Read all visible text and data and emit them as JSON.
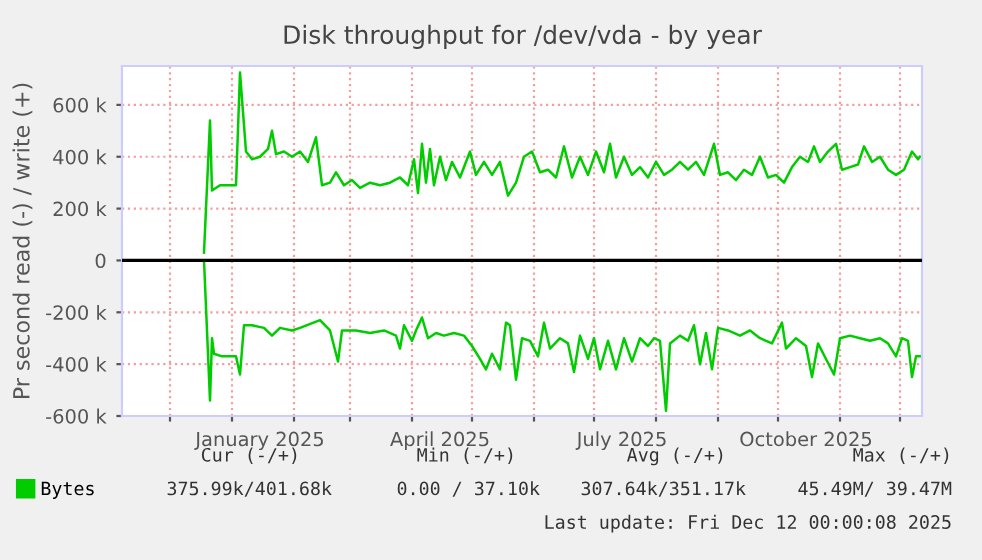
{
  "chart_data": {
    "type": "line",
    "title": "Disk throughput for /dev/vda - by year",
    "ylabel": "Pr second read (-) / write (+)",
    "xlim": [
      "2024-11-07",
      "2025-12-12"
    ],
    "xticks": [
      {
        "value": "2024-12-01",
        "label": null
      },
      {
        "value": "2025-01-01",
        "label": null
      },
      {
        "value": "2025-02-01",
        "label": null
      },
      {
        "value": "2025-03-01",
        "label": null
      },
      {
        "value": "2025-04-01",
        "label": null
      },
      {
        "value": "2025-05-01",
        "label": null
      },
      {
        "value": "2025-06-01",
        "label": null
      },
      {
        "value": "2025-07-01",
        "label": null
      },
      {
        "value": "2025-08-01",
        "label": null
      },
      {
        "value": "2025-09-01",
        "label": null
      },
      {
        "value": "2025-10-01",
        "label": null
      },
      {
        "value": "2025-11-01",
        "label": null
      },
      {
        "value": "2025-12-01",
        "label": null
      },
      {
        "value": "2025-01-15",
        "label": "January 2025"
      },
      {
        "value": "2025-04-15",
        "label": "April 2025"
      },
      {
        "value": "2025-07-15",
        "label": "July 2025"
      },
      {
        "value": "2025-10-15",
        "label": "October 2025"
      }
    ],
    "ylim": [
      -600000,
      750000
    ],
    "yticks": [
      {
        "value": -600000,
        "label": "-600 k"
      },
      {
        "value": -400000,
        "label": "-400 k"
      },
      {
        "value": -200000,
        "label": "-200 k"
      },
      0,
      {
        "value": 200000,
        "label": "200 k"
      },
      {
        "value": 400000,
        "label": "400 k"
      },
      {
        "value": 600000,
        "label": "600 k"
      }
    ],
    "grid": true,
    "legend": "bottom left",
    "ref_lines": [
      {
        "axis": "y",
        "value": 0,
        "color": "#000000"
      }
    ],
    "annotations": [
      "Cur (-/+)",
      "Min (-/+)",
      "Avg (-/+)",
      "Max (-/+)",
      "375.99k/401.68k",
      "0.00 / 37.10k",
      "307.64k/351.17k",
      "45.49M/ 39.47M",
      "Last update: Fri Dec 12 00:00:08 2025"
    ],
    "series": [
      {
        "name": "Bytes",
        "color": "#00cc00",
        "x": [
          "2024-12-18",
          "2024-12-21",
          "2024-12-22",
          "2024-12-26",
          "2025-01-03",
          "2025-01-05",
          "2025-01-08",
          "2025-01-11",
          "2025-01-15",
          "2025-01-19",
          "2025-01-21",
          "2025-01-23",
          "2025-01-27",
          "2025-01-31",
          "2025-02-04",
          "2025-02-08",
          "2025-02-12",
          "2025-02-15",
          "2025-02-19",
          "2025-02-22",
          "2025-02-26",
          "2025-03-02",
          "2025-03-06",
          "2025-03-11",
          "2025-03-16",
          "2025-03-21",
          "2025-03-26",
          "2025-03-30",
          "2025-04-02",
          "2025-04-04",
          "2025-04-06",
          "2025-04-08",
          "2025-04-10",
          "2025-04-12",
          "2025-04-15",
          "2025-04-18",
          "2025-04-21",
          "2025-04-25",
          "2025-04-30",
          "2025-05-03",
          "2025-05-07",
          "2025-05-11",
          "2025-05-15",
          "2025-05-19",
          "2025-05-23",
          "2025-05-27",
          "2025-05-31",
          "2025-06-04",
          "2025-06-08",
          "2025-06-12",
          "2025-06-16",
          "2025-06-20",
          "2025-06-24",
          "2025-06-28",
          "2025-07-02",
          "2025-07-06",
          "2025-07-09",
          "2025-07-12",
          "2025-07-16",
          "2025-07-20",
          "2025-07-24",
          "2025-07-28",
          "2025-08-01",
          "2025-08-05",
          "2025-08-09",
          "2025-08-13",
          "2025-08-17",
          "2025-08-21",
          "2025-08-25",
          "2025-08-30",
          "2025-09-02",
          "2025-09-06",
          "2025-09-10",
          "2025-09-14",
          "2025-09-18",
          "2025-09-22",
          "2025-09-26",
          "2025-09-30",
          "2025-10-04",
          "2025-10-08",
          "2025-10-12",
          "2025-10-16",
          "2025-10-19",
          "2025-10-22",
          "2025-10-26",
          "2025-10-30",
          "2025-11-02",
          "2025-11-06",
          "2025-11-10",
          "2025-11-13",
          "2025-11-17",
          "2025-11-21",
          "2025-11-25",
          "2025-11-29",
          "2025-12-03",
          "2025-12-07",
          "2025-12-10",
          "2025-12-11"
        ],
        "values": [
          30000,
          540000,
          270000,
          290000,
          290000,
          725000,
          420000,
          390000,
          400000,
          430000,
          500000,
          410000,
          420000,
          400000,
          420000,
          380000,
          475000,
          290000,
          300000,
          340000,
          290000,
          310000,
          280000,
          300000,
          290000,
          300000,
          320000,
          290000,
          390000,
          260000,
          450000,
          300000,
          430000,
          290000,
          400000,
          310000,
          380000,
          320000,
          420000,
          330000,
          380000,
          330000,
          380000,
          250000,
          300000,
          400000,
          420000,
          340000,
          350000,
          320000,
          440000,
          320000,
          400000,
          330000,
          420000,
          340000,
          450000,
          320000,
          400000,
          330000,
          360000,
          320000,
          380000,
          330000,
          350000,
          380000,
          350000,
          380000,
          330000,
          450000,
          330000,
          340000,
          310000,
          350000,
          330000,
          400000,
          320000,
          330000,
          300000,
          360000,
          400000,
          380000,
          440000,
          380000,
          420000,
          450000,
          350000,
          360000,
          370000,
          440000,
          380000,
          400000,
          350000,
          330000,
          350000,
          420000,
          390000,
          400000
        ]
      },
      {
        "color": "#00cc00",
        "x": [
          "2024-12-18",
          "2024-12-21",
          "2024-12-22",
          "2024-12-23",
          "2024-12-27",
          "2025-01-03",
          "2025-01-05",
          "2025-01-07",
          "2025-01-11",
          "2025-01-17",
          "2025-01-21",
          "2025-01-25",
          "2025-01-31",
          "2025-02-04",
          "2025-02-14",
          "2025-02-19",
          "2025-02-23",
          "2025-02-25",
          "2025-03-04",
          "2025-03-11",
          "2025-03-18",
          "2025-03-24",
          "2025-03-26",
          "2025-03-28",
          "2025-04-01",
          "2025-04-03",
          "2025-04-06",
          "2025-04-09",
          "2025-04-13",
          "2025-04-17",
          "2025-04-22",
          "2025-04-27",
          "2025-05-01",
          "2025-05-05",
          "2025-05-08",
          "2025-05-11",
          "2025-05-15",
          "2025-05-18",
          "2025-05-20",
          "2025-05-23",
          "2025-05-26",
          "2025-05-30",
          "2025-06-03",
          "2025-06-06",
          "2025-06-09",
          "2025-06-14",
          "2025-06-18",
          "2025-06-21",
          "2025-06-24",
          "2025-06-28",
          "2025-07-01",
          "2025-07-04",
          "2025-07-08",
          "2025-07-12",
          "2025-07-16",
          "2025-07-20",
          "2025-07-24",
          "2025-07-28",
          "2025-07-31",
          "2025-08-03",
          "2025-08-06",
          "2025-08-08",
          "2025-08-13",
          "2025-08-17",
          "2025-08-20",
          "2025-08-23",
          "2025-08-26",
          "2025-08-29",
          "2025-09-01",
          "2025-09-06",
          "2025-09-12",
          "2025-09-17",
          "2025-09-22",
          "2025-09-28",
          "2025-10-03",
          "2025-10-05",
          "2025-10-10",
          "2025-10-15",
          "2025-10-18",
          "2025-10-21",
          "2025-10-25",
          "2025-10-29",
          "2025-11-01",
          "2025-11-06",
          "2025-11-11",
          "2025-11-16",
          "2025-11-21",
          "2025-11-25",
          "2025-11-29",
          "2025-12-02",
          "2025-12-05",
          "2025-12-07",
          "2025-12-09",
          "2025-12-11"
        ],
        "values": [
          0,
          -540000,
          -300000,
          -360000,
          -370000,
          -370000,
          -440000,
          -250000,
          -250000,
          -260000,
          -290000,
          -260000,
          -270000,
          -260000,
          -230000,
          -270000,
          -390000,
          -270000,
          -270000,
          -280000,
          -270000,
          -290000,
          -340000,
          -250000,
          -310000,
          -270000,
          -220000,
          -300000,
          -280000,
          -290000,
          -280000,
          -290000,
          -330000,
          -380000,
          -420000,
          -360000,
          -420000,
          -240000,
          -250000,
          -460000,
          -300000,
          -310000,
          -370000,
          -240000,
          -340000,
          -300000,
          -320000,
          -430000,
          -290000,
          -380000,
          -300000,
          -420000,
          -310000,
          -420000,
          -300000,
          -390000,
          -300000,
          -330000,
          -300000,
          -310000,
          -580000,
          -320000,
          -290000,
          -310000,
          -250000,
          -400000,
          -280000,
          -420000,
          -260000,
          -270000,
          -290000,
          -270000,
          -300000,
          -320000,
          -240000,
          -340000,
          -300000,
          -330000,
          -450000,
          -320000,
          -380000,
          -440000,
          -300000,
          -290000,
          -300000,
          -310000,
          -300000,
          -320000,
          -370000,
          -300000,
          -310000,
          -450000,
          -370000,
          -370000
        ]
      }
    ]
  }
}
